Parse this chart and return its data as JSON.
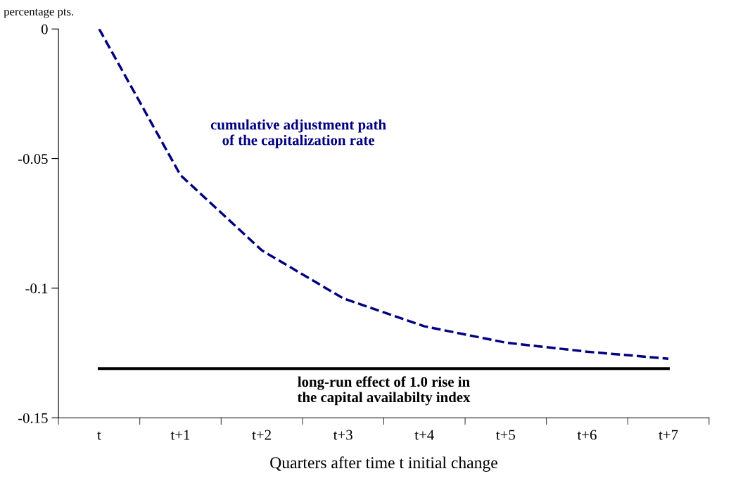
{
  "chart_data": {
    "type": "line",
    "ylabel": "percentage pts.",
    "xlabel": "Quarters after time t initial change",
    "categories": [
      "t",
      "t+1",
      "t+2",
      "t+3",
      "t+4",
      "t+5",
      "t+6",
      "t+7"
    ],
    "series": [
      {
        "name": "cumulative adjustment path\nof the capitalization rate",
        "color": "#000080",
        "line_style": "dashed",
        "values": [
          0,
          -0.0564,
          -0.0854,
          -0.1039,
          -0.1147,
          -0.121,
          -0.1245,
          -0.1272
        ]
      },
      {
        "name": "long-run effect of 1.0 rise in\nthe capital availabilty index",
        "color": "#000000",
        "line_style": "solid",
        "values": [
          -0.131,
          -0.131,
          -0.131,
          -0.131,
          -0.131,
          -0.131,
          -0.131,
          -0.131
        ]
      }
    ],
    "ylim": [
      -0.15,
      0
    ],
    "yticks": [
      {
        "value": -0.15,
        "label": "-0.15"
      },
      {
        "value": -0.1,
        "label": "-0.1"
      },
      {
        "value": -0.05,
        "label": "-0.05"
      },
      0
    ],
    "grid": false,
    "legend": false,
    "marker": "none"
  }
}
